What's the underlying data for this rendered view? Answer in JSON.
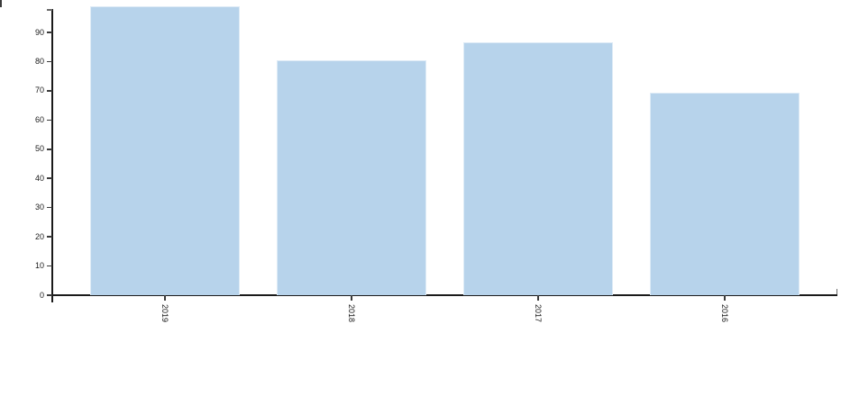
{
  "chart_data": {
    "type": "bar",
    "title": "",
    "xlabel": "",
    "ylabel": "",
    "categories": [
      "2019",
      "2018",
      "2017",
      "2016"
    ],
    "values": [
      99,
      80.5,
      86.5,
      69.5
    ],
    "yticks": [
      0,
      10,
      20,
      30,
      40,
      50,
      60,
      70,
      80,
      90
    ],
    "ylim": [
      0,
      98
    ],
    "grid": false,
    "legend": null,
    "colors": {
      "bar_fill": "#b7d3eb",
      "axis": "#1a1a1a",
      "tick": "#3a3a3a",
      "end_cap": "#6a6a6a",
      "text": "#1a1a1a",
      "background": "#ffffff"
    }
  }
}
